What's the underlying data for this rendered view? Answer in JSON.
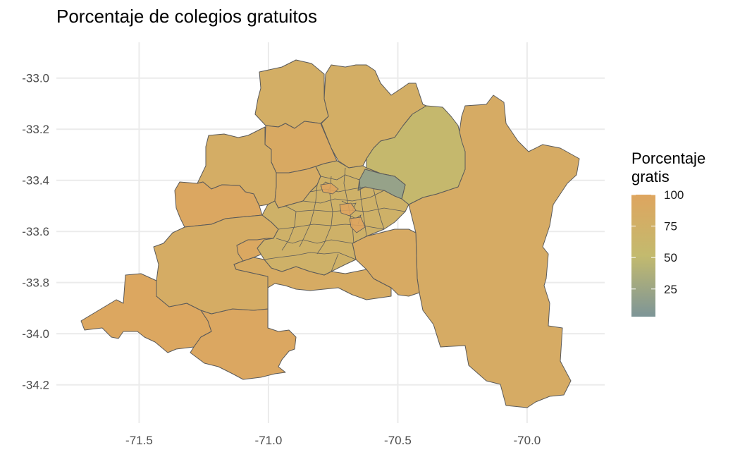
{
  "chart_data": {
    "type": "choropleth-map",
    "title": "Porcentaje de colegios gratuitos",
    "x_ticks": [
      "-71.5",
      "-71.0",
      "-70.5",
      "-70.0"
    ],
    "x_tick_values": [
      -71.5,
      -71.0,
      -70.5,
      -70.0
    ],
    "y_ticks": [
      "-33.0",
      "-33.2",
      "-33.4",
      "-33.6",
      "-33.8",
      "-34.0",
      "-34.2"
    ],
    "y_tick_values": [
      -33.0,
      -33.2,
      -33.4,
      -33.6,
      -33.8,
      -34.0,
      -34.2
    ],
    "xlim": [
      -71.82,
      -69.7
    ],
    "ylim": [
      -34.35,
      -32.86
    ],
    "grid": true,
    "legend": {
      "title_lines": [
        "Porcentaje",
        "gratis"
      ],
      "labels": [
        "100",
        "75",
        "50",
        "25"
      ],
      "values": [
        100,
        75,
        50,
        25
      ],
      "range": [
        3,
        100
      ],
      "placement": "right",
      "colors": {
        "low": "#7d9597",
        "mid": "#c3ba6e",
        "high": "#dea55f"
      }
    },
    "region_values": {
      "cordillera-east": 85,
      "north-west": 80,
      "north-center": 80,
      "northeast": 55,
      "north-orange": 90,
      "west-upper": 82,
      "west-orange": 95,
      "southwest": 96,
      "south": 95,
      "central-southwest": 84,
      "center-west": 85,
      "south-central": 86,
      "south-east": 88,
      "small-west": 94,
      "urban-center": 72,
      "upper-east": 20
    }
  }
}
